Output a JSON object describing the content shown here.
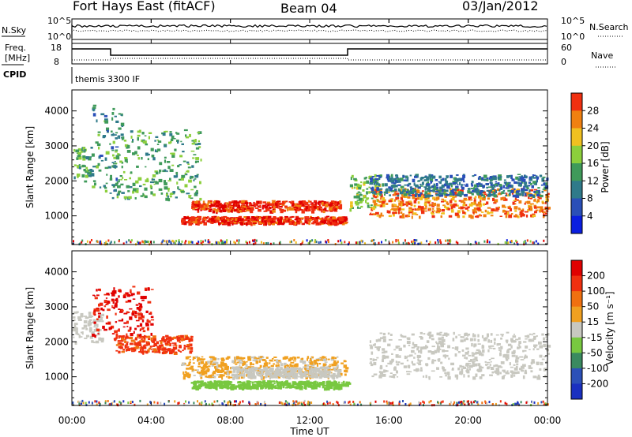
{
  "header": {
    "station": "Fort Hays East (fitACF)",
    "beam": "Beam 04",
    "date": "03/Jan/2012"
  },
  "noise_panel": {
    "left_label": "N.Sky",
    "right_label": "N.Search",
    "left_ticks": [
      "10^5",
      "10^0"
    ],
    "right_ticks": [
      "10^5",
      "10^0"
    ]
  },
  "freq_panel": {
    "left_label_1": "Freq.",
    "left_label_2": "[MHz]",
    "left_ticks": [
      "18",
      "8"
    ],
    "right_label": "Nave",
    "right_ticks": [
      "60",
      "0"
    ],
    "cpid_label": "CPID",
    "cpid_text": "themis 3300 IF"
  },
  "power_panel": {
    "ylabel": "Slant Range [km]",
    "yticks": [
      "4000",
      "3000",
      "2000",
      "1000"
    ],
    "colorbar_label": "Power [dB]",
    "colorbar_ticks": [
      "28",
      "24",
      "20",
      "16",
      "12",
      "8",
      "4"
    ],
    "colors": [
      "#0a1ee0",
      "#2a4fb8",
      "#2f7a8a",
      "#3f9a5a",
      "#8ccf3c",
      "#f0c020",
      "#f08010",
      "#f03010",
      "#e00000"
    ]
  },
  "velocity_panel": {
    "ylabel": "Slant Range [km]",
    "yticks": [
      "4000",
      "3000",
      "2000",
      "1000"
    ],
    "colorbar_label": "Velocity [m s⁻¹]",
    "colorbar_ticks": [
      "200",
      "100",
      "50",
      "15",
      "-15",
      "-50",
      "-100",
      "-200"
    ],
    "colors": [
      "#1a30c0",
      "#2c50b8",
      "#3a8a60",
      "#78c840",
      "#c8c8c0",
      "#f0a020",
      "#f07010",
      "#f03010",
      "#e00000"
    ]
  },
  "xaxis": {
    "label": "Time UT",
    "ticks": [
      "00:00",
      "04:00",
      "08:00",
      "12:00",
      "16:00",
      "20:00",
      "00:00"
    ]
  },
  "chart_data": [
    {
      "type": "heatmap",
      "title": "Fort Hays East (fitACF) Beam 04 03/Jan/2012",
      "quantity": "Power",
      "xlabel": "Time UT",
      "ylabel": "Slant Range [km]",
      "xlim": [
        0,
        24
      ],
      "ylim": [
        180,
        4600
      ],
      "colorbar_label": "Power [dB]",
      "colorbar_range": [
        0,
        30
      ],
      "regions": [
        {
          "t": [
            0.0,
            1.0
          ],
          "range": [
            2000,
            3000
          ],
          "value": 12
        },
        {
          "t": [
            1.0,
            2.5
          ],
          "range": [
            1600,
            4200
          ],
          "value": 10
        },
        {
          "t": [
            2.0,
            6.5
          ],
          "range": [
            1500,
            3500
          ],
          "value": 12
        },
        {
          "t": [
            5.5,
            13.8
          ],
          "range": [
            800,
            1000
          ],
          "value": 26
        },
        {
          "t": [
            6.0,
            13.5
          ],
          "range": [
            1150,
            1450
          ],
          "value": 26
        },
        {
          "t": [
            14.0,
            15.5
          ],
          "range": [
            1200,
            2200
          ],
          "value": 14
        },
        {
          "t": [
            15.0,
            24.0
          ],
          "range": [
            1000,
            1800
          ],
          "value": 22
        },
        {
          "t": [
            15.0,
            24.0
          ],
          "range": [
            1600,
            2200
          ],
          "value": 8
        }
      ]
    },
    {
      "type": "heatmap",
      "title": "Fort Hays East (fitACF) Beam 04 03/Jan/2012",
      "quantity": "Velocity",
      "xlabel": "Time UT",
      "ylabel": "Slant Range [km]",
      "xlim": [
        0,
        24
      ],
      "ylim": [
        180,
        4600
      ],
      "colorbar_label": "Velocity [m s-1]",
      "colorbar_range": [
        -250,
        250
      ],
      "regions": [
        {
          "t": [
            0.0,
            1.5
          ],
          "range": [
            2000,
            2900
          ],
          "value": 0
        },
        {
          "t": [
            1.0,
            4.0
          ],
          "range": [
            2200,
            3600
          ],
          "value": 200
        },
        {
          "t": [
            2.0,
            6.0
          ],
          "range": [
            1700,
            2200
          ],
          "value": 150
        },
        {
          "t": [
            5.5,
            13.8
          ],
          "range": [
            1000,
            1600
          ],
          "value": 40
        },
        {
          "t": [
            8.0,
            13.5
          ],
          "range": [
            1000,
            1300
          ],
          "value": 0
        },
        {
          "t": [
            6.0,
            14.0
          ],
          "range": [
            700,
            900
          ],
          "value": -60
        },
        {
          "t": [
            15.0,
            24.0
          ],
          "range": [
            1000,
            2300
          ],
          "value": 0
        }
      ]
    }
  ]
}
